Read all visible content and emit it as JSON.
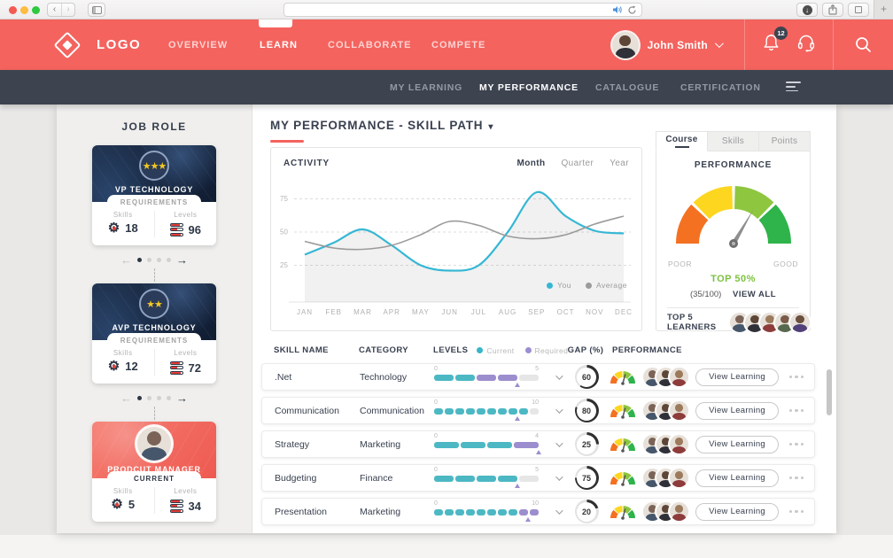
{
  "chrome": {
    "url_value": ""
  },
  "topnav": {
    "brand_color": "#f4635e",
    "logo": "LOGO",
    "items": [
      {
        "label": "OVERVIEW",
        "active": false
      },
      {
        "label": "LEARN",
        "active": true
      },
      {
        "label": "COLLABORATE",
        "active": false
      },
      {
        "label": "COMPETE",
        "active": false
      }
    ],
    "user": {
      "name": "John Smith"
    },
    "notification_count": "12"
  },
  "subnav": {
    "items": [
      {
        "label": "MY LEARNING",
        "active": false
      },
      {
        "label": "MY PERFORMANCE",
        "active": true
      },
      {
        "label": "CATALOGUE",
        "active": false
      },
      {
        "label": "CERTIFICATION",
        "active": false
      }
    ]
  },
  "sidebar": {
    "title": "JOB ROLE",
    "cards": [
      {
        "name": "VP TECHNOLOGY",
        "stars": "★★★",
        "tab": "REQUIREMENTS",
        "skills_label": "Skills",
        "skills": "18",
        "levels_label": "Levels",
        "levels": "96"
      },
      {
        "name": "AVP TECHNOLOGY",
        "stars": "★★",
        "tab": "REQUIREMENTS",
        "skills_label": "Skills",
        "skills": "12",
        "levels_label": "Levels",
        "levels": "72"
      },
      {
        "name": "PRODCUT MANAGER",
        "tab": "CURRENT",
        "skills_label": "Skills",
        "skills": "5",
        "levels_label": "Levels",
        "levels": "34"
      }
    ]
  },
  "main": {
    "title": "MY PERFORMANCE - SKILL PATH"
  },
  "activity": {
    "title": "ACTIVITY",
    "tabs": [
      {
        "label": "Month",
        "active": true
      },
      {
        "label": "Quarter",
        "active": false
      },
      {
        "label": "Year",
        "active": false
      }
    ],
    "legend": [
      {
        "label": "You",
        "color": "#35b7d4"
      },
      {
        "label": "Average",
        "color": "#9b9b9b"
      }
    ]
  },
  "chart_data": {
    "type": "line",
    "title": "ACTIVITY",
    "x": [
      "JAN",
      "FEB",
      "MAR",
      "APR",
      "MAY",
      "JUN",
      "JUL",
      "AUG",
      "SEP",
      "OCT",
      "NOV",
      "DEC"
    ],
    "series": [
      {
        "name": "You",
        "color": "#35b7d4",
        "fill": true,
        "values": [
          33,
          42,
          52,
          40,
          25,
          21,
          25,
          50,
          80,
          62,
          51,
          49
        ]
      },
      {
        "name": "Average",
        "color": "#9b9b9b",
        "fill": false,
        "values": [
          43,
          38,
          37,
          40,
          48,
          58,
          55,
          47,
          45,
          48,
          56,
          62
        ]
      }
    ],
    "yticks": [
      25,
      50,
      75
    ],
    "ylim": [
      0,
      90
    ],
    "grid": "dashed-horizontal",
    "legend_position": "bottom-right"
  },
  "performance_panel": {
    "tabs": [
      {
        "label": "Course",
        "active": true
      },
      {
        "label": "Skills",
        "active": false
      },
      {
        "label": "Points",
        "active": false
      }
    ],
    "title": "PERFORMANCE",
    "gauge_colors": [
      "#f37121",
      "#fdd61f",
      "#8ec63f",
      "#2fb34b"
    ],
    "needle_color": "#8f8f8f",
    "poor_label": "POOR",
    "good_label": "GOOD",
    "top_label": "TOP 50%",
    "top_color": "#7dc242",
    "score": "(35/100)",
    "view_all": "VIEW ALL",
    "learners_label": "TOP 5 LEARNERS",
    "learners_count": 5
  },
  "table": {
    "headers": {
      "skill": "SKILL NAME",
      "category": "CATEGORY",
      "levels": "LEVELS",
      "gap": "GAP (%)",
      "performance": "PERFORMANCE"
    },
    "legend": [
      {
        "label": "Current",
        "color": "#35b7c8"
      },
      {
        "label": "Required",
        "color": "#9c8ece"
      }
    ],
    "level_colors": {
      "current": "#4cb8c4",
      "required": "#9c8ece",
      "empty": "#e6e6e6"
    },
    "gap_ring": {
      "fill": "#2f2f2f",
      "track": "#e2e2e2"
    },
    "view_learning_label": "View Learning",
    "rows": [
      {
        "skill": ".Net",
        "category": "Technology",
        "scale": [
          0,
          5
        ],
        "segments": [
          "current",
          "current",
          "required",
          "required",
          "empty"
        ],
        "marker": 4,
        "gap": 60,
        "avatars": 3
      },
      {
        "skill": "Communication",
        "category": "Communication",
        "scale": [
          0,
          10
        ],
        "segments": [
          "current",
          "current",
          "current",
          "current",
          "current",
          "current",
          "current",
          "current",
          "current",
          "empty"
        ],
        "marker": 8,
        "gap": 80,
        "avatars": 3
      },
      {
        "skill": "Strategy",
        "category": "Marketing",
        "scale": [
          0,
          4
        ],
        "segments": [
          "current",
          "current",
          "current",
          "required"
        ],
        "marker": 4,
        "gap": 25,
        "avatars": 3
      },
      {
        "skill": "Budgeting",
        "category": "Finance",
        "scale": [
          0,
          5
        ],
        "segments": [
          "current",
          "current",
          "current",
          "current",
          "empty"
        ],
        "marker": 4,
        "gap": 75,
        "avatars": 3
      },
      {
        "skill": "Presentation",
        "category": "Marketing",
        "scale": [
          0,
          10
        ],
        "segments": [
          "current",
          "current",
          "current",
          "current",
          "current",
          "current",
          "current",
          "current",
          "required",
          "required"
        ],
        "marker": 9,
        "gap": 20,
        "avatars": 3
      }
    ]
  }
}
